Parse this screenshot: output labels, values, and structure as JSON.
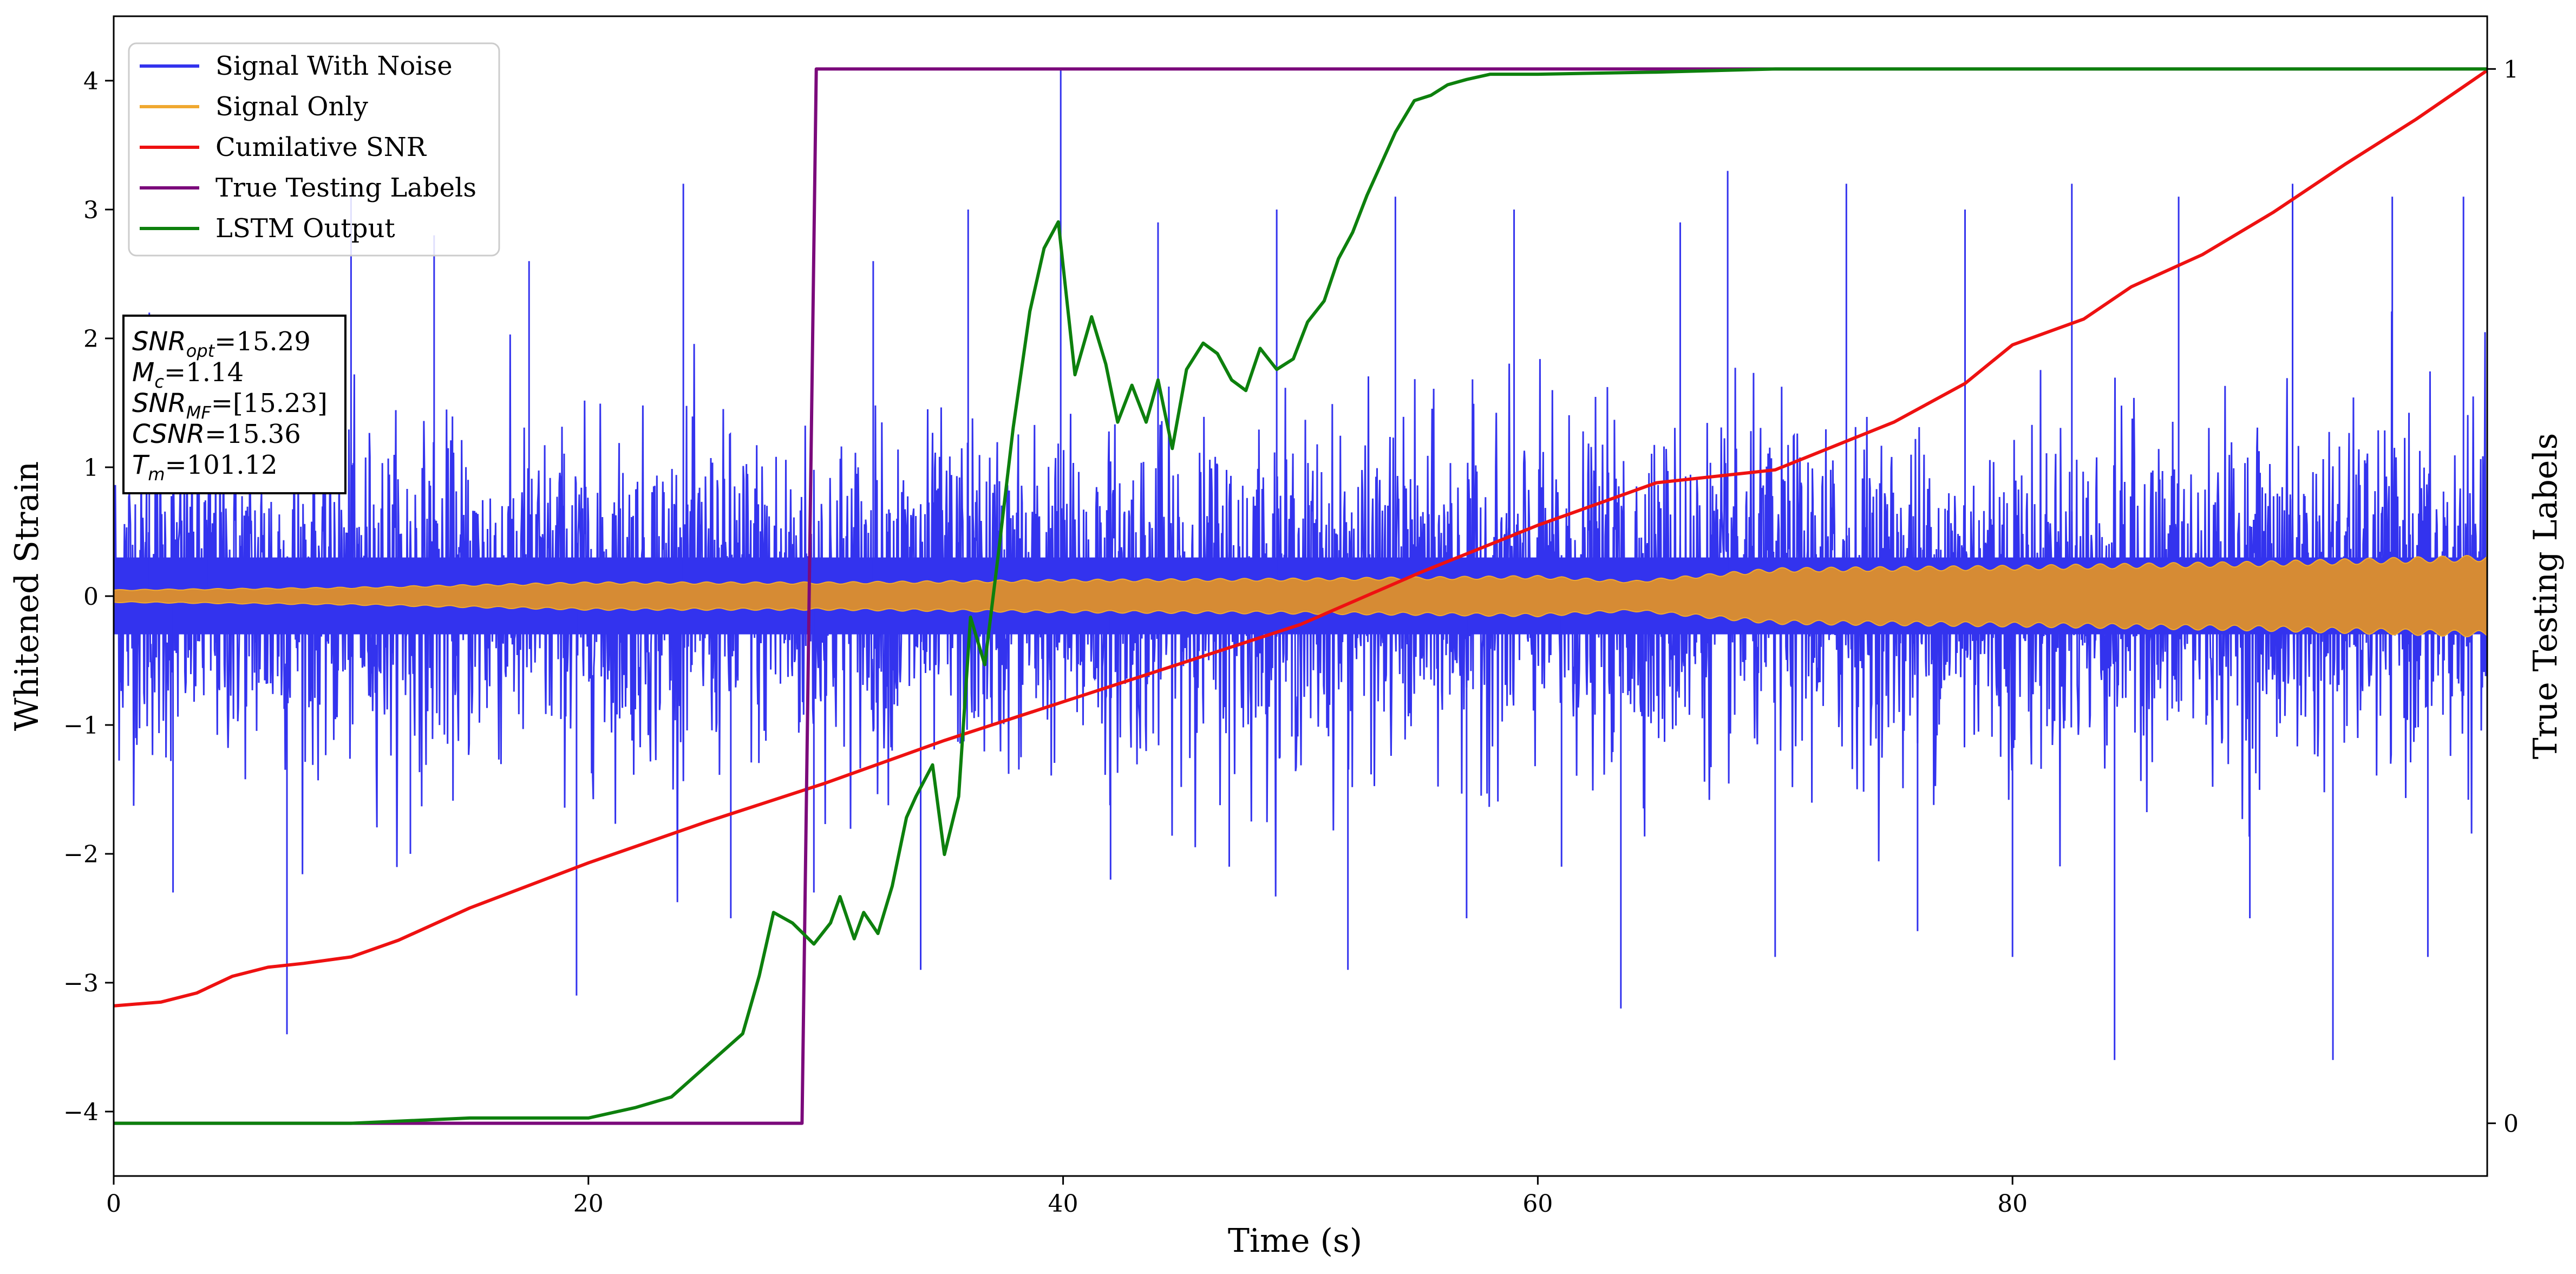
{
  "chart_data": {
    "type": "line",
    "xlabel": "Time (s)",
    "ylabel": "Whitened Strain",
    "y2label": "True Testing Labels",
    "xlim": [
      0,
      100
    ],
    "ylim": [
      -4.5,
      4.5
    ],
    "y2lim": [
      -0.05,
      1.05
    ],
    "xticks": [
      0,
      20,
      40,
      60,
      80
    ],
    "yticks": [
      -4,
      -3,
      -2,
      -1,
      0,
      1,
      2,
      3,
      4
    ],
    "y2ticks": [
      0,
      1
    ],
    "grid": false,
    "legend_position": "upper-left",
    "series": [
      {
        "name": "Signal With Noise",
        "color": "#3333ee",
        "axis": "left",
        "description": "noise band",
        "envelope_typical": 1.9,
        "spikes": [
          [
            1.5,
            2.2
          ],
          [
            2.5,
            -2.3
          ],
          [
            4.0,
            2.1
          ],
          [
            7.3,
            -3.4
          ],
          [
            10.0,
            3.1
          ],
          [
            12.5,
            -2.0
          ],
          [
            13.5,
            2.8
          ],
          [
            17.5,
            2.6
          ],
          [
            19.5,
            -3.1
          ],
          [
            24.0,
            3.2
          ],
          [
            26.0,
            -2.5
          ],
          [
            29.5,
            -2.3
          ],
          [
            32.0,
            2.6
          ],
          [
            34.0,
            -2.9
          ],
          [
            36.0,
            3.0
          ],
          [
            39.9,
            4.1
          ],
          [
            42.0,
            -2.2
          ],
          [
            44.0,
            2.9
          ],
          [
            47.0,
            -2.1
          ],
          [
            49.0,
            3.0
          ],
          [
            52.0,
            -2.9
          ],
          [
            54.0,
            3.1
          ],
          [
            57.0,
            -2.5
          ],
          [
            59.0,
            3.0
          ],
          [
            61.0,
            -2.1
          ],
          [
            63.5,
            -3.2
          ],
          [
            66.0,
            2.9
          ],
          [
            68.0,
            3.3
          ],
          [
            70.0,
            -2.8
          ],
          [
            73.0,
            3.2
          ],
          [
            76.0,
            -2.6
          ],
          [
            78.0,
            3.0
          ],
          [
            80.0,
            -2.8
          ],
          [
            82.5,
            3.2
          ],
          [
            84.3,
            -3.6
          ],
          [
            87.0,
            3.1
          ],
          [
            90.0,
            -2.5
          ],
          [
            91.8,
            3.2
          ],
          [
            93.5,
            -3.6
          ],
          [
            96.0,
            3.1
          ],
          [
            97.5,
            -2.8
          ],
          [
            99.0,
            3.1
          ]
        ]
      },
      {
        "name": "Signal Only",
        "color": "#f0a830",
        "axis": "left",
        "amplitude": [
          [
            0,
            0.05
          ],
          [
            10,
            0.07
          ],
          [
            20,
            0.11
          ],
          [
            30,
            0.11
          ],
          [
            40,
            0.13
          ],
          [
            50,
            0.14
          ],
          [
            60,
            0.16
          ],
          [
            64,
            0.12
          ],
          [
            67,
            0.17
          ],
          [
            70,
            0.22
          ],
          [
            80,
            0.24
          ],
          [
            90,
            0.27
          ],
          [
            100,
            0.32
          ]
        ]
      },
      {
        "name": "Cumilative SNR",
        "color": "#ee1111",
        "axis": "left",
        "points": [
          [
            0,
            -3.18
          ],
          [
            2,
            -3.15
          ],
          [
            3.5,
            -3.08
          ],
          [
            5,
            -2.95
          ],
          [
            6.5,
            -2.88
          ],
          [
            8,
            -2.85
          ],
          [
            10,
            -2.8
          ],
          [
            12,
            -2.67
          ],
          [
            15,
            -2.42
          ],
          [
            20,
            -2.07
          ],
          [
            25,
            -1.75
          ],
          [
            30,
            -1.45
          ],
          [
            35,
            -1.12
          ],
          [
            40,
            -0.82
          ],
          [
            45,
            -0.52
          ],
          [
            50,
            -0.22
          ],
          [
            55,
            0.18
          ],
          [
            60,
            0.55
          ],
          [
            65,
            0.88
          ],
          [
            70,
            0.98
          ],
          [
            75,
            1.35
          ],
          [
            78,
            1.65
          ],
          [
            80,
            1.95
          ],
          [
            83,
            2.15
          ],
          [
            85,
            2.4
          ],
          [
            88,
            2.65
          ],
          [
            91,
            2.98
          ],
          [
            94,
            3.35
          ],
          [
            97,
            3.7
          ],
          [
            100,
            4.08
          ]
        ]
      },
      {
        "name": "True Testing Labels",
        "color": "#7b0a7b",
        "axis": "right",
        "points": [
          [
            0,
            0.0
          ],
          [
            29.0,
            0.0
          ],
          [
            29.6,
            1.0
          ],
          [
            100,
            1.0
          ]
        ]
      },
      {
        "name": "LSTM Output",
        "color": "#0d800d",
        "axis": "right",
        "points": [
          [
            0,
            0.0
          ],
          [
            10,
            0.0
          ],
          [
            15,
            0.005
          ],
          [
            20,
            0.005
          ],
          [
            22,
            0.015
          ],
          [
            23.5,
            0.025
          ],
          [
            25,
            0.055
          ],
          [
            26.5,
            0.085
          ],
          [
            27.2,
            0.14
          ],
          [
            27.8,
            0.2
          ],
          [
            28.6,
            0.19
          ],
          [
            29.5,
            0.17
          ],
          [
            30.2,
            0.19
          ],
          [
            30.6,
            0.215
          ],
          [
            31.2,
            0.175
          ],
          [
            31.6,
            0.2
          ],
          [
            32.2,
            0.18
          ],
          [
            32.8,
            0.225
          ],
          [
            33.4,
            0.29
          ],
          [
            33.8,
            0.31
          ],
          [
            34.5,
            0.34
          ],
          [
            35.0,
            0.255
          ],
          [
            35.6,
            0.31
          ],
          [
            36.1,
            0.48
          ],
          [
            36.7,
            0.435
          ],
          [
            37.3,
            0.545
          ],
          [
            37.9,
            0.66
          ],
          [
            38.6,
            0.77
          ],
          [
            39.2,
            0.83
          ],
          [
            39.8,
            0.855
          ],
          [
            40.5,
            0.71
          ],
          [
            41.2,
            0.765
          ],
          [
            41.8,
            0.72
          ],
          [
            42.3,
            0.665
          ],
          [
            42.9,
            0.7
          ],
          [
            43.5,
            0.665
          ],
          [
            44.0,
            0.705
          ],
          [
            44.6,
            0.64
          ],
          [
            45.2,
            0.715
          ],
          [
            45.9,
            0.74
          ],
          [
            46.5,
            0.73
          ],
          [
            47.1,
            0.705
          ],
          [
            47.7,
            0.695
          ],
          [
            48.3,
            0.735
          ],
          [
            49.0,
            0.715
          ],
          [
            49.7,
            0.725
          ],
          [
            50.3,
            0.76
          ],
          [
            51.0,
            0.78
          ],
          [
            51.6,
            0.82
          ],
          [
            52.2,
            0.845
          ],
          [
            52.8,
            0.88
          ],
          [
            53.4,
            0.91
          ],
          [
            54.0,
            0.94
          ],
          [
            54.8,
            0.97
          ],
          [
            55.5,
            0.975
          ],
          [
            56.2,
            0.985
          ],
          [
            57.0,
            0.99
          ],
          [
            58.0,
            0.995
          ],
          [
            60.0,
            0.995
          ],
          [
            65.0,
            0.997
          ],
          [
            70.0,
            1.0
          ],
          [
            100.0,
            1.0
          ]
        ]
      }
    ],
    "annotation": {
      "lines": [
        {
          "base": "SNR",
          "sub": "opt",
          "value": "=15.29"
        },
        {
          "base": "M",
          "sub": "c",
          "value": "=1.14"
        },
        {
          "base": "SNR",
          "sub": "MF",
          "value": "=[15.23]"
        },
        {
          "base": "CSNR",
          "sub": "",
          "value": "=15.36"
        },
        {
          "base": "T",
          "sub": "m",
          "value": "=101.12"
        }
      ]
    }
  }
}
